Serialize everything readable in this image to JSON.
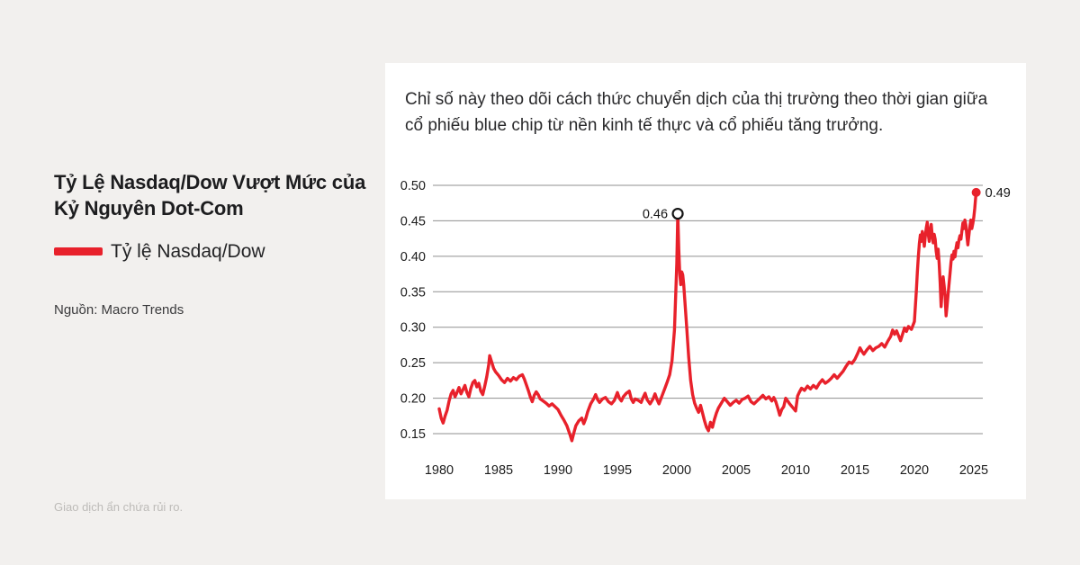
{
  "page": {
    "background_color": "#f2f0ee",
    "disclaimer": "Giao dịch ẩn chứa rủi ro."
  },
  "left_panel": {
    "title": "Tỷ Lệ Nasdaq/Dow Vượt Mức của Kỷ Nguyên Dot-Com",
    "legend_label": "Tỷ lệ Nasdaq/Dow",
    "legend_color": "#e8212b",
    "source": "Nguồn: Macro Trends"
  },
  "card": {
    "description": "Chỉ số này theo dõi cách thức chuyển dịch của thị trường theo thời gian giữa cổ phiếu blue chip từ nền kinh tế thực và cổ phiếu tăng trưởng."
  },
  "chart_data": {
    "type": "line",
    "title": "Tỷ lệ Nasdaq/Dow theo thời gian",
    "xlabel": "",
    "ylabel": "",
    "grid": "horizontal",
    "grid_color": "#8f8f8f",
    "tick_color": "#1c1c1c",
    "x_ticks": [
      "1980",
      "1985",
      "1990",
      "1995",
      "2000",
      "2005",
      "2010",
      "2015",
      "2020",
      "2025"
    ],
    "y_ticks": [
      "0.15",
      "0.20",
      "0.25",
      "0.30",
      "0.35",
      "0.40",
      "0.45",
      "0.50"
    ],
    "xlim": [
      1979.5,
      2026.3
    ],
    "ylim": [
      0.13,
      0.52
    ],
    "legend_position": "outside-left",
    "series": [
      {
        "name": "Tỷ lệ Nasdaq/Dow",
        "color": "#e8212b",
        "points": [
          [
            1980,
            0.185
          ],
          [
            1980.17,
            0.172
          ],
          [
            1980.33,
            0.165
          ],
          [
            1980.5,
            0.175
          ],
          [
            1980.67,
            0.183
          ],
          [
            1980.83,
            0.196
          ],
          [
            1981,
            0.206
          ],
          [
            1981.17,
            0.211
          ],
          [
            1981.33,
            0.202
          ],
          [
            1981.5,
            0.208
          ],
          [
            1981.67,
            0.215
          ],
          [
            1981.83,
            0.206
          ],
          [
            1982,
            0.212
          ],
          [
            1982.17,
            0.218
          ],
          [
            1982.33,
            0.208
          ],
          [
            1982.5,
            0.202
          ],
          [
            1982.67,
            0.214
          ],
          [
            1982.83,
            0.222
          ],
          [
            1983,
            0.225
          ],
          [
            1983.17,
            0.216
          ],
          [
            1983.33,
            0.221
          ],
          [
            1983.5,
            0.21
          ],
          [
            1983.67,
            0.205
          ],
          [
            1983.83,
            0.217
          ],
          [
            1984,
            0.23
          ],
          [
            1984.17,
            0.247
          ],
          [
            1984.25,
            0.26
          ],
          [
            1984.42,
            0.251
          ],
          [
            1984.58,
            0.242
          ],
          [
            1984.75,
            0.237
          ],
          [
            1985,
            0.232
          ],
          [
            1985.25,
            0.226
          ],
          [
            1985.5,
            0.222
          ],
          [
            1985.75,
            0.228
          ],
          [
            1986,
            0.224
          ],
          [
            1986.25,
            0.229
          ],
          [
            1986.5,
            0.226
          ],
          [
            1986.75,
            0.231
          ],
          [
            1987,
            0.233
          ],
          [
            1987.17,
            0.227
          ],
          [
            1987.33,
            0.219
          ],
          [
            1987.5,
            0.211
          ],
          [
            1987.67,
            0.202
          ],
          [
            1987.83,
            0.195
          ],
          [
            1988,
            0.204
          ],
          [
            1988.17,
            0.209
          ],
          [
            1988.33,
            0.205
          ],
          [
            1988.5,
            0.199
          ],
          [
            1988.75,
            0.196
          ],
          [
            1989,
            0.193
          ],
          [
            1989.25,
            0.189
          ],
          [
            1989.5,
            0.192
          ],
          [
            1989.75,
            0.188
          ],
          [
            1990,
            0.184
          ],
          [
            1990.25,
            0.176
          ],
          [
            1990.5,
            0.169
          ],
          [
            1990.75,
            0.161
          ],
          [
            1991,
            0.149
          ],
          [
            1991.17,
            0.14
          ],
          [
            1991.33,
            0.151
          ],
          [
            1991.5,
            0.161
          ],
          [
            1991.75,
            0.168
          ],
          [
            1992,
            0.172
          ],
          [
            1992.17,
            0.164
          ],
          [
            1992.33,
            0.171
          ],
          [
            1992.5,
            0.181
          ],
          [
            1992.75,
            0.192
          ],
          [
            1993,
            0.199
          ],
          [
            1993.17,
            0.205
          ],
          [
            1993.33,
            0.198
          ],
          [
            1993.5,
            0.194
          ],
          [
            1993.75,
            0.199
          ],
          [
            1994,
            0.201
          ],
          [
            1994.25,
            0.195
          ],
          [
            1994.5,
            0.192
          ],
          [
            1994.75,
            0.197
          ],
          [
            1995,
            0.208
          ],
          [
            1995.17,
            0.2
          ],
          [
            1995.33,
            0.196
          ],
          [
            1995.5,
            0.202
          ],
          [
            1995.75,
            0.207
          ],
          [
            1996,
            0.21
          ],
          [
            1996.17,
            0.199
          ],
          [
            1996.33,
            0.194
          ],
          [
            1996.5,
            0.199
          ],
          [
            1996.75,
            0.197
          ],
          [
            1997,
            0.194
          ],
          [
            1997.17,
            0.201
          ],
          [
            1997.33,
            0.207
          ],
          [
            1997.5,
            0.198
          ],
          [
            1997.75,
            0.192
          ],
          [
            1998,
            0.199
          ],
          [
            1998.17,
            0.206
          ],
          [
            1998.33,
            0.198
          ],
          [
            1998.5,
            0.192
          ],
          [
            1998.75,
            0.203
          ],
          [
            1999,
            0.214
          ],
          [
            1999.2,
            0.223
          ],
          [
            1999.4,
            0.233
          ],
          [
            1999.6,
            0.253
          ],
          [
            1999.8,
            0.296
          ],
          [
            1999.92,
            0.35
          ],
          [
            2000,
            0.39
          ],
          [
            2000.08,
            0.46
          ],
          [
            2000.17,
            0.41
          ],
          [
            2000.25,
            0.375
          ],
          [
            2000.33,
            0.36
          ],
          [
            2000.42,
            0.378
          ],
          [
            2000.5,
            0.374
          ],
          [
            2000.58,
            0.36
          ],
          [
            2000.67,
            0.34
          ],
          [
            2000.83,
            0.3
          ],
          [
            2001,
            0.258
          ],
          [
            2001.17,
            0.225
          ],
          [
            2001.33,
            0.205
          ],
          [
            2001.5,
            0.193
          ],
          [
            2001.67,
            0.186
          ],
          [
            2001.83,
            0.18
          ],
          [
            2002,
            0.19
          ],
          [
            2002.17,
            0.179
          ],
          [
            2002.33,
            0.168
          ],
          [
            2002.5,
            0.159
          ],
          [
            2002.67,
            0.154
          ],
          [
            2002.83,
            0.166
          ],
          [
            2003,
            0.159
          ],
          [
            2003.17,
            0.17
          ],
          [
            2003.33,
            0.179
          ],
          [
            2003.5,
            0.186
          ],
          [
            2003.75,
            0.193
          ],
          [
            2004,
            0.2
          ],
          [
            2004.25,
            0.195
          ],
          [
            2004.5,
            0.19
          ],
          [
            2004.75,
            0.194
          ],
          [
            2005,
            0.197
          ],
          [
            2005.25,
            0.193
          ],
          [
            2005.5,
            0.198
          ],
          [
            2005.75,
            0.2
          ],
          [
            2006,
            0.203
          ],
          [
            2006.25,
            0.195
          ],
          [
            2006.5,
            0.192
          ],
          [
            2006.75,
            0.196
          ],
          [
            2007,
            0.2
          ],
          [
            2007.25,
            0.204
          ],
          [
            2007.5,
            0.199
          ],
          [
            2007.75,
            0.202
          ],
          [
            2008,
            0.196
          ],
          [
            2008.17,
            0.201
          ],
          [
            2008.33,
            0.195
          ],
          [
            2008.5,
            0.186
          ],
          [
            2008.67,
            0.176
          ],
          [
            2008.83,
            0.184
          ],
          [
            2009,
            0.188
          ],
          [
            2009.17,
            0.2
          ],
          [
            2009.33,
            0.196
          ],
          [
            2009.5,
            0.192
          ],
          [
            2009.75,
            0.187
          ],
          [
            2010,
            0.182
          ],
          [
            2010.17,
            0.203
          ],
          [
            2010.33,
            0.209
          ],
          [
            2010.5,
            0.214
          ],
          [
            2010.75,
            0.211
          ],
          [
            2011,
            0.217
          ],
          [
            2011.25,
            0.213
          ],
          [
            2011.5,
            0.218
          ],
          [
            2011.75,
            0.214
          ],
          [
            2012,
            0.221
          ],
          [
            2012.25,
            0.226
          ],
          [
            2012.5,
            0.221
          ],
          [
            2012.75,
            0.224
          ],
          [
            2013,
            0.228
          ],
          [
            2013.25,
            0.233
          ],
          [
            2013.5,
            0.228
          ],
          [
            2013.75,
            0.233
          ],
          [
            2014,
            0.238
          ],
          [
            2014.25,
            0.245
          ],
          [
            2014.5,
            0.251
          ],
          [
            2014.75,
            0.249
          ],
          [
            2015,
            0.255
          ],
          [
            2015.25,
            0.264
          ],
          [
            2015.42,
            0.271
          ],
          [
            2015.58,
            0.266
          ],
          [
            2015.75,
            0.262
          ],
          [
            2016,
            0.268
          ],
          [
            2016.25,
            0.273
          ],
          [
            2016.5,
            0.267
          ],
          [
            2016.75,
            0.271
          ],
          [
            2017,
            0.273
          ],
          [
            2017.25,
            0.277
          ],
          [
            2017.5,
            0.272
          ],
          [
            2017.75,
            0.28
          ],
          [
            2018,
            0.287
          ],
          [
            2018.17,
            0.296
          ],
          [
            2018.33,
            0.29
          ],
          [
            2018.5,
            0.295
          ],
          [
            2018.67,
            0.288
          ],
          [
            2018.83,
            0.281
          ],
          [
            2019,
            0.29
          ],
          [
            2019.17,
            0.299
          ],
          [
            2019.33,
            0.294
          ],
          [
            2019.5,
            0.301
          ],
          [
            2019.75,
            0.297
          ],
          [
            2020,
            0.308
          ],
          [
            2020.08,
            0.33
          ],
          [
            2020.17,
            0.352
          ],
          [
            2020.25,
            0.378
          ],
          [
            2020.33,
            0.4
          ],
          [
            2020.42,
            0.418
          ],
          [
            2020.5,
            0.43
          ],
          [
            2020.58,
            0.421
          ],
          [
            2020.67,
            0.435
          ],
          [
            2020.75,
            0.427
          ],
          [
            2020.83,
            0.414
          ],
          [
            2020.92,
            0.428
          ],
          [
            2021,
            0.44
          ],
          [
            2021.08,
            0.448
          ],
          [
            2021.17,
            0.431
          ],
          [
            2021.25,
            0.421
          ],
          [
            2021.33,
            0.435
          ],
          [
            2021.42,
            0.445
          ],
          [
            2021.5,
            0.429
          ],
          [
            2021.58,
            0.419
          ],
          [
            2021.67,
            0.431
          ],
          [
            2021.75,
            0.424
          ],
          [
            2021.83,
            0.407
          ],
          [
            2021.92,
            0.397
          ],
          [
            2022,
            0.41
          ],
          [
            2022.08,
            0.39
          ],
          [
            2022.17,
            0.363
          ],
          [
            2022.25,
            0.329
          ],
          [
            2022.33,
            0.352
          ],
          [
            2022.42,
            0.371
          ],
          [
            2022.5,
            0.359
          ],
          [
            2022.58,
            0.344
          ],
          [
            2022.67,
            0.316
          ],
          [
            2022.75,
            0.33
          ],
          [
            2022.83,
            0.346
          ],
          [
            2022.92,
            0.361
          ],
          [
            2023,
            0.376
          ],
          [
            2023.08,
            0.392
          ],
          [
            2023.17,
            0.402
          ],
          [
            2023.25,
            0.396
          ],
          [
            2023.33,
            0.407
          ],
          [
            2023.42,
            0.399
          ],
          [
            2023.5,
            0.411
          ],
          [
            2023.58,
            0.419
          ],
          [
            2023.67,
            0.412
          ],
          [
            2023.75,
            0.423
          ],
          [
            2023.83,
            0.429
          ],
          [
            2023.92,
            0.424
          ],
          [
            2024,
            0.436
          ],
          [
            2024.08,
            0.447
          ],
          [
            2024.17,
            0.439
          ],
          [
            2024.25,
            0.451
          ],
          [
            2024.33,
            0.444
          ],
          [
            2024.42,
            0.429
          ],
          [
            2024.5,
            0.416
          ],
          [
            2024.58,
            0.429
          ],
          [
            2024.67,
            0.442
          ],
          [
            2024.75,
            0.451
          ],
          [
            2024.83,
            0.439
          ],
          [
            2024.92,
            0.446
          ],
          [
            2025,
            0.455
          ],
          [
            2025.08,
            0.468
          ],
          [
            2025.14,
            0.479
          ],
          [
            2025.2,
            0.49
          ]
        ]
      }
    ],
    "annotations": [
      {
        "label": "0.46",
        "year": 2000.08,
        "value": 0.46,
        "marker": "open-circle",
        "label_position": "left"
      },
      {
        "label": "0.49",
        "year": 2025.2,
        "value": 0.49,
        "marker": "filled-dot",
        "label_position": "right"
      }
    ]
  }
}
